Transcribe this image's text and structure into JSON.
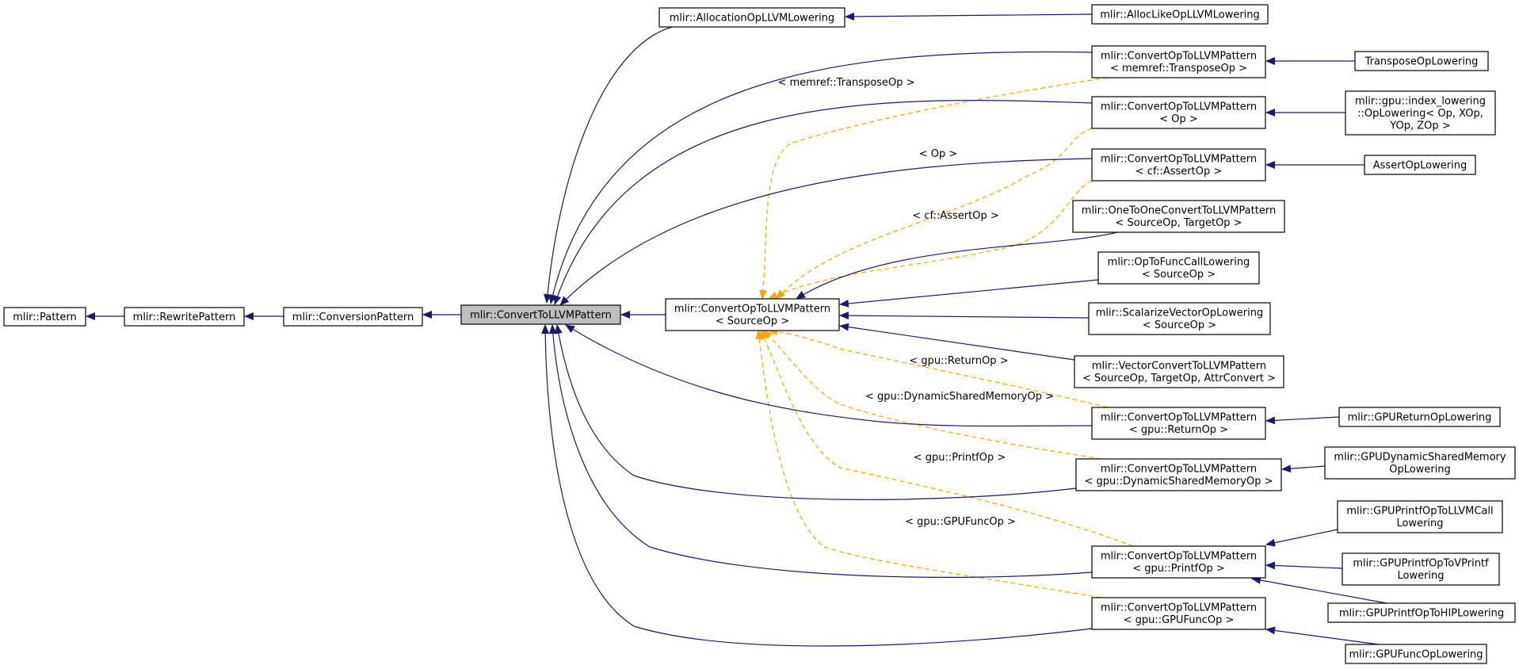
{
  "colors": {
    "inheritance_edge": "#191970",
    "template_edge": "#ffa500",
    "focus_fill": "#bfbfbf",
    "node_fill": "#ffffff"
  },
  "nodes": [
    {
      "id": "pattern",
      "lines": [
        "mlir::Pattern"
      ]
    },
    {
      "id": "rewrite",
      "lines": [
        "mlir::RewritePattern"
      ]
    },
    {
      "id": "conversion",
      "lines": [
        "mlir::ConversionPattern"
      ]
    },
    {
      "id": "ctollvm",
      "lines": [
        "mlir::ConvertToLLVMPattern"
      ],
      "focus": true
    },
    {
      "id": "convop_src",
      "lines": [
        "mlir::ConvertOpToLLVMPattern",
        "< SourceOp >"
      ]
    },
    {
      "id": "allocation",
      "lines": [
        "mlir::AllocationOpLLVMLowering"
      ]
    },
    {
      "id": "alloclike",
      "lines": [
        "mlir::AllocLikeOpLLVMLowering"
      ]
    },
    {
      "id": "convop_transpose",
      "lines": [
        "mlir::ConvertOpToLLVMPattern",
        "< memref::TransposeOp >"
      ]
    },
    {
      "id": "transposelow",
      "lines": [
        "TransposeOpLowering"
      ]
    },
    {
      "id": "convop_op",
      "lines": [
        "mlir::ConvertOpToLLVMPattern",
        "< Op >"
      ]
    },
    {
      "id": "indexlow",
      "lines": [
        "mlir::gpu::index_lowering",
        "::OpLowering< Op, XOp,",
        "YOp, ZOp >"
      ]
    },
    {
      "id": "convop_assert",
      "lines": [
        "mlir::ConvertOpToLLVMPattern",
        "< cf::AssertOp >"
      ]
    },
    {
      "id": "assertlow",
      "lines": [
        "AssertOpLowering"
      ]
    },
    {
      "id": "onetoone",
      "lines": [
        "mlir::OneToOneConvertToLLVMPattern",
        "< SourceOp, TargetOp >"
      ]
    },
    {
      "id": "optofunc",
      "lines": [
        "mlir::OpToFuncCallLowering",
        "< SourceOp >"
      ]
    },
    {
      "id": "scalarize",
      "lines": [
        "mlir::ScalarizeVectorOpLowering",
        "< SourceOp >"
      ]
    },
    {
      "id": "vectorconv",
      "lines": [
        "mlir::VectorConvertToLLVMPattern",
        "< SourceOp, TargetOp, AttrConvert >"
      ]
    },
    {
      "id": "convop_return",
      "lines": [
        "mlir::ConvertOpToLLVMPattern",
        "< gpu::ReturnOp >"
      ]
    },
    {
      "id": "gpureturn",
      "lines": [
        "mlir::GPUReturnOpLowering"
      ]
    },
    {
      "id": "convop_dynshared",
      "lines": [
        "mlir::ConvertOpToLLVMPattern",
        "< gpu::DynamicSharedMemoryOp >"
      ]
    },
    {
      "id": "gpudynshared",
      "lines": [
        "mlir::GPUDynamicSharedMemory",
        "OpLowering"
      ]
    },
    {
      "id": "gpuprintfcall",
      "lines": [
        "mlir::GPUPrintfOpToLLVMCall",
        "Lowering"
      ]
    },
    {
      "id": "convop_printf",
      "lines": [
        "mlir::ConvertOpToLLVMPattern",
        "< gpu::PrintfOp >"
      ]
    },
    {
      "id": "gpuprintfv",
      "lines": [
        "mlir::GPUPrintfOpToVPrintf",
        "Lowering"
      ]
    },
    {
      "id": "gpuprintfhip",
      "lines": [
        "mlir::GPUPrintfOpToHIPLowering"
      ]
    },
    {
      "id": "convop_gpufunc",
      "lines": [
        "mlir::ConvertOpToLLVMPattern",
        "< gpu::GPUFuncOp >"
      ]
    },
    {
      "id": "gpufunclow",
      "lines": [
        "mlir::GPUFuncOpLowering"
      ]
    }
  ],
  "inheritance_edges": [
    {
      "from": "rewrite",
      "to": "pattern"
    },
    {
      "from": "conversion",
      "to": "rewrite"
    },
    {
      "from": "ctollvm",
      "to": "conversion"
    },
    {
      "from": "convop_src",
      "to": "ctollvm"
    },
    {
      "from": "allocation",
      "to": "ctollvm"
    },
    {
      "from": "convop_transpose",
      "to": "ctollvm"
    },
    {
      "from": "convop_op",
      "to": "ctollvm"
    },
    {
      "from": "convop_assert",
      "to": "ctollvm"
    },
    {
      "from": "convop_return",
      "to": "ctollvm"
    },
    {
      "from": "convop_dynshared",
      "to": "ctollvm"
    },
    {
      "from": "convop_printf",
      "to": "ctollvm"
    },
    {
      "from": "convop_gpufunc",
      "to": "ctollvm"
    },
    {
      "from": "alloclike",
      "to": "allocation"
    },
    {
      "from": "transposelow",
      "to": "convop_transpose"
    },
    {
      "from": "indexlow",
      "to": "convop_op"
    },
    {
      "from": "assertlow",
      "to": "convop_assert"
    },
    {
      "from": "onetoone",
      "to": "convop_src"
    },
    {
      "from": "optofunc",
      "to": "convop_src"
    },
    {
      "from": "scalarize",
      "to": "convop_src"
    },
    {
      "from": "vectorconv",
      "to": "convop_src"
    },
    {
      "from": "gpureturn",
      "to": "convop_return"
    },
    {
      "from": "gpudynshared",
      "to": "convop_dynshared"
    },
    {
      "from": "gpuprintfcall",
      "to": "convop_printf"
    },
    {
      "from": "gpuprintfv",
      "to": "convop_printf"
    },
    {
      "from": "gpuprintfhip",
      "to": "convop_printf"
    },
    {
      "from": "gpufunclow",
      "to": "convop_gpufunc"
    }
  ],
  "template_edges": [
    {
      "from": "convop_transpose",
      "to": "convop_src",
      "label": "< memref::TransposeOp >"
    },
    {
      "from": "convop_op",
      "to": "convop_src",
      "label": "< Op >"
    },
    {
      "from": "convop_assert",
      "to": "convop_src",
      "label": "< cf::AssertOp >"
    },
    {
      "from": "convop_return",
      "to": "convop_src",
      "label": "< gpu::ReturnOp >"
    },
    {
      "from": "convop_dynshared",
      "to": "convop_src",
      "label": "< gpu::DynamicSharedMemoryOp >"
    },
    {
      "from": "convop_printf",
      "to": "convop_src",
      "label": "< gpu::PrintfOp >"
    },
    {
      "from": "convop_gpufunc",
      "to": "convop_src",
      "label": "< gpu::GPUFuncOp >"
    }
  ]
}
